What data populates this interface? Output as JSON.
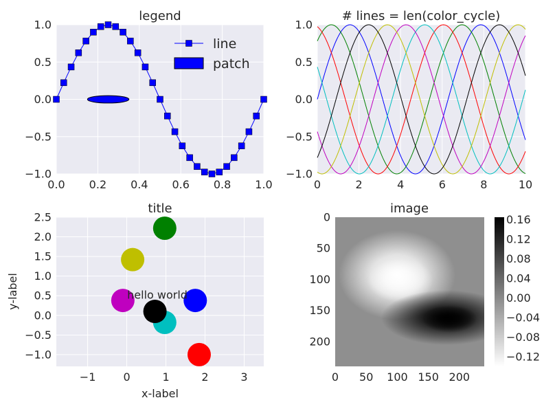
{
  "chart_data": [
    {
      "type": "line",
      "title": "legend",
      "xlabel": "",
      "ylabel": "",
      "xlim": [
        0,
        1
      ],
      "ylim": [
        -1,
        1
      ],
      "xticks": [
        "0.0",
        "0.2",
        "0.4",
        "0.6",
        "0.8",
        "1.0"
      ],
      "yticks": [
        "−1.0",
        "−0.5",
        "0.0",
        "0.5",
        "1.0"
      ],
      "series": [
        {
          "name": "line",
          "color": "#0000ff",
          "marker": "square",
          "x": [
            0,
            0.0357,
            0.0714,
            0.1071,
            0.1429,
            0.1786,
            0.2143,
            0.25,
            0.2857,
            0.3214,
            0.3571,
            0.3929,
            0.4286,
            0.4643,
            0.5,
            0.5357,
            0.5714,
            0.6071,
            0.6429,
            0.6786,
            0.7143,
            0.75,
            0.7857,
            0.8214,
            0.8571,
            0.8929,
            0.9286,
            0.9643,
            1
          ],
          "y": [
            0,
            0.223,
            0.434,
            0.624,
            0.782,
            0.901,
            0.975,
            1.0,
            0.975,
            0.901,
            0.782,
            0.624,
            0.434,
            0.223,
            0,
            -0.223,
            -0.434,
            -0.624,
            -0.782,
            -0.901,
            -0.975,
            -1.0,
            -0.975,
            -0.901,
            -0.782,
            -0.624,
            -0.434,
            -0.223,
            0
          ]
        }
      ],
      "patch": {
        "name": "patch",
        "shape": "ellipse",
        "center": [
          0.25,
          0
        ],
        "width": 0.2,
        "height": 0.2,
        "color": "#0000ff"
      },
      "legend_location": "top-right"
    },
    {
      "type": "line",
      "title": "# lines = len(color_cycle)",
      "xlim": [
        0,
        10
      ],
      "ylim": [
        -1,
        1
      ],
      "xticks": [
        "0",
        "2",
        "4",
        "6",
        "8",
        "10"
      ],
      "yticks": [
        "−1.0",
        "−0.5",
        "0.0",
        "0.5",
        "1.0"
      ],
      "function": "sin(x + phase)",
      "series": [
        {
          "color": "#0000ff",
          "phase": 0.0
        },
        {
          "color": "#008000",
          "phase": 0.898
        },
        {
          "color": "#ff0000",
          "phase": 1.795
        },
        {
          "color": "#00bfbf",
          "phase": 2.693
        },
        {
          "color": "#bf00bf",
          "phase": 3.59
        },
        {
          "color": "#bfbf00",
          "phase": 4.488
        },
        {
          "color": "#000000",
          "phase": 5.386
        }
      ]
    },
    {
      "type": "scatter",
      "title": "title",
      "xlabel": "x-label",
      "ylabel": "y-label",
      "xlim": [
        -1.8,
        3.5
      ],
      "ylim": [
        -1.3,
        2.5
      ],
      "xticks": [
        "−1",
        "0",
        "1",
        "2",
        "3"
      ],
      "yticks": [
        "−1.0",
        "−0.5",
        "0.0",
        "0.5",
        "1.0",
        "1.5",
        "2.0",
        "2.5"
      ],
      "points": [
        {
          "x": 1.75,
          "y": 0.38,
          "color": "#0000ff"
        },
        {
          "x": 0.97,
          "y": 2.22,
          "color": "#008000"
        },
        {
          "x": 1.85,
          "y": -1.0,
          "color": "#ff0000"
        },
        {
          "x": 0.97,
          "y": -0.18,
          "color": "#00bfbf"
        },
        {
          "x": -0.1,
          "y": 0.38,
          "color": "#bf00bf"
        },
        {
          "x": 0.15,
          "y": 1.42,
          "color": "#bfbf00"
        },
        {
          "x": 0.72,
          "y": 0.1,
          "color": "#000000"
        }
      ],
      "annotation": {
        "text": "hello world",
        "x": 0.8,
        "y": 0.6
      }
    },
    {
      "type": "heatmap",
      "title": "image",
      "xticks": [
        "0",
        "50",
        "100",
        "150",
        "200"
      ],
      "yticks": [
        "0",
        "50",
        "100",
        "150",
        "200"
      ],
      "extent": [
        0,
        240
      ],
      "colormap": "gray_r",
      "vmin": -0.14,
      "vmax": 0.165,
      "colorbar_ticks": [
        "0.16",
        "0.12",
        "0.08",
        "0.04",
        "0.00",
        "−0.04",
        "−0.08",
        "−0.12"
      ],
      "features": [
        {
          "sign": "negative",
          "peak": -0.14,
          "center": [
            100,
            100
          ]
        },
        {
          "sign": "positive",
          "peak": 0.165,
          "center": [
            180,
            165
          ]
        }
      ]
    }
  ]
}
